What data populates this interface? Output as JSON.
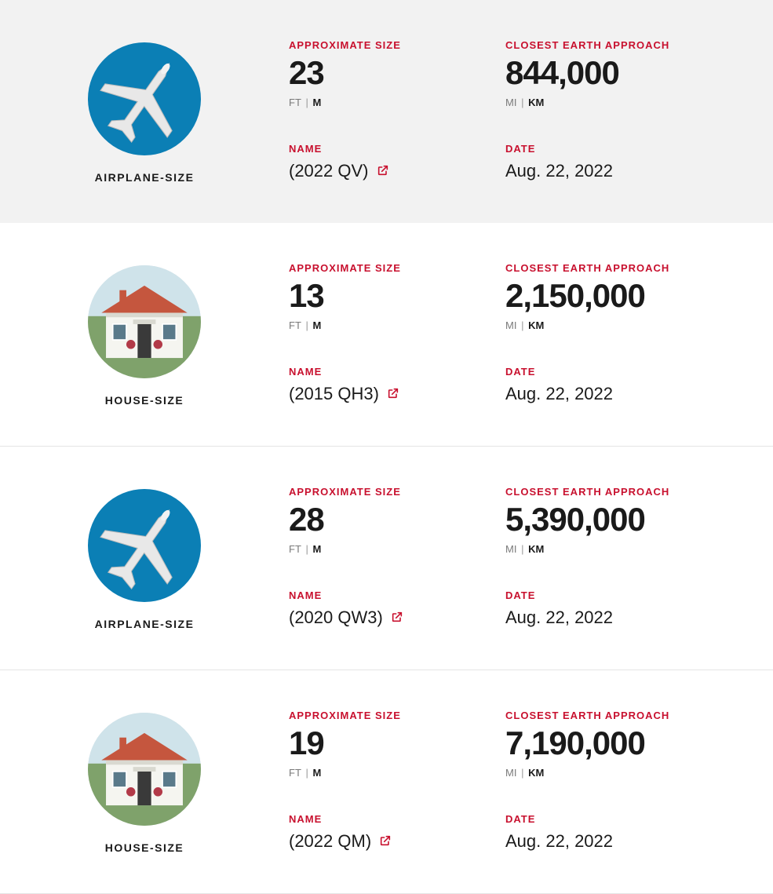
{
  "labels": {
    "approx_size": "APPROXIMATE SIZE",
    "closest_approach": "CLOSEST EARTH APPROACH",
    "name": "NAME",
    "date": "DATE",
    "ft": "FT",
    "m": "M",
    "mi": "MI",
    "km": "KM",
    "sep": "|"
  },
  "colors": {
    "accent": "#c8102e",
    "text": "#1a1a1a",
    "muted": "#7a7a7a",
    "divider": "#e5e5e5",
    "highlight_bg": "#f2f2f2",
    "airplane_bg": "#0b7fb5"
  },
  "asteroids": [
    {
      "icon_type": "airplane",
      "icon_label": "AIRPLANE-SIZE",
      "size_value": "23",
      "size_unit_active": "M",
      "approach_value": "844,000",
      "approach_unit_active": "KM",
      "name": "(2022 QV)",
      "date": "Aug. 22, 2022",
      "highlighted": true
    },
    {
      "icon_type": "house",
      "icon_label": "HOUSE-SIZE",
      "size_value": "13",
      "size_unit_active": "M",
      "approach_value": "2,150,000",
      "approach_unit_active": "KM",
      "name": "(2015 QH3)",
      "date": "Aug. 22, 2022",
      "highlighted": false
    },
    {
      "icon_type": "airplane",
      "icon_label": "AIRPLANE-SIZE",
      "size_value": "28",
      "size_unit_active": "M",
      "approach_value": "5,390,000",
      "approach_unit_active": "KM",
      "name": "(2020 QW3)",
      "date": "Aug. 22, 2022",
      "highlighted": false
    },
    {
      "icon_type": "house",
      "icon_label": "HOUSE-SIZE",
      "size_value": "19",
      "size_unit_active": "M",
      "approach_value": "7,190,000",
      "approach_unit_active": "KM",
      "name": "(2022 QM)",
      "date": "Aug. 22, 2022",
      "highlighted": false
    }
  ]
}
